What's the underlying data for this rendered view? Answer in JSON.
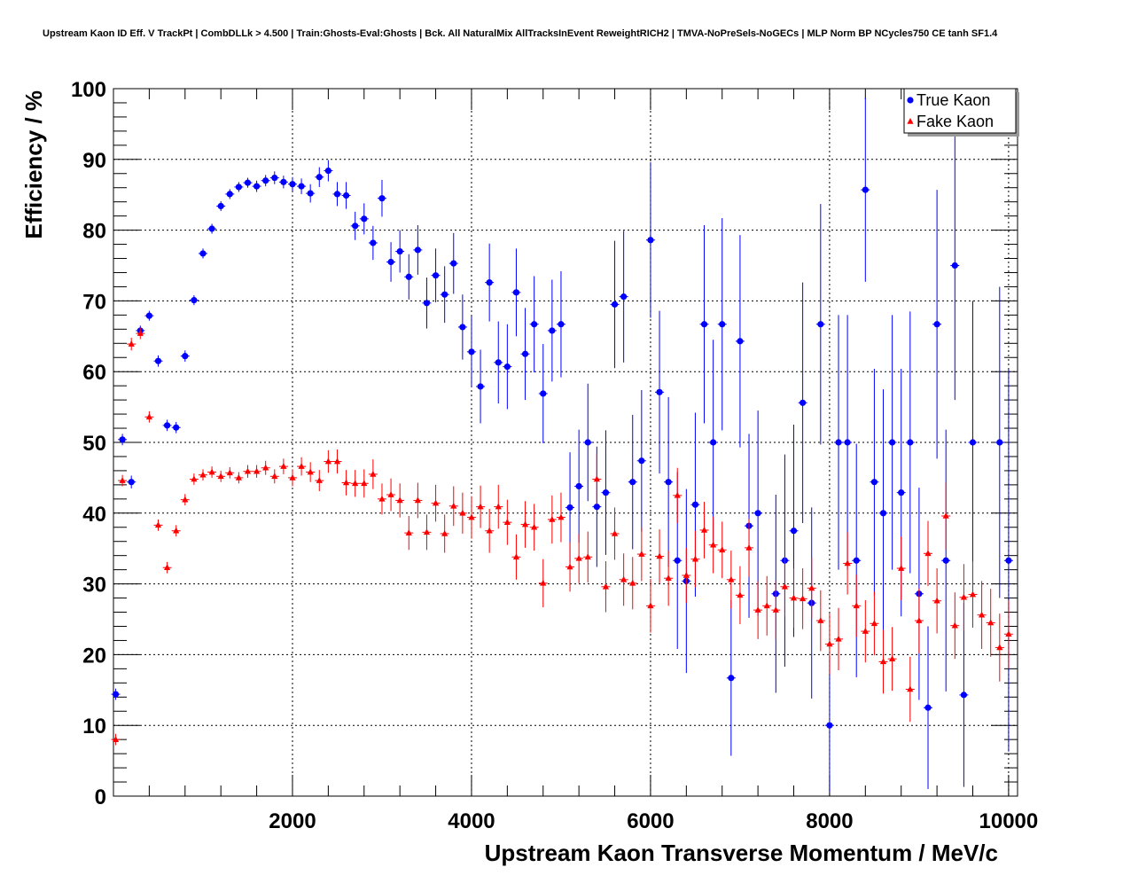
{
  "chart_data": {
    "type": "scatter",
    "title": "Upstream Kaon ID Eff. V TrackPt | CombDLLk > 4.500 | Train:Ghosts-Eval:Ghosts | Bck. All NaturalMix AllTracksInEvent ReweightRICH2 | TMVA-NoPreSels-NoGECs | MLP Norm BP NCycles750 CE tanh SF1.4",
    "xlabel": "Upstream Kaon Transverse Momentum / MeV/c",
    "ylabel": "Efficiency / %",
    "xlim": [
      0,
      10100
    ],
    "ylim": [
      0,
      100
    ],
    "xticks": [
      2000,
      4000,
      6000,
      8000,
      10000
    ],
    "yticks": [
      0,
      10,
      20,
      30,
      40,
      50,
      60,
      70,
      80,
      90,
      100
    ],
    "grid": true,
    "legend_position": "top-right",
    "series": [
      {
        "name": "True Kaon",
        "color": "#0000ff",
        "marker": "circle",
        "x": [
          25,
          100,
          200,
          300,
          400,
          500,
          600,
          700,
          800,
          900,
          1000,
          1100,
          1200,
          1300,
          1400,
          1500,
          1600,
          1700,
          1800,
          1900,
          2000,
          2100,
          2200,
          2300,
          2400,
          2500,
          2600,
          2700,
          2800,
          2900,
          3000,
          3100,
          3200,
          3300,
          3400,
          3500,
          3600,
          3700,
          3800,
          3900,
          4000,
          4100,
          4200,
          4300,
          4400,
          4500,
          4600,
          4700,
          4800,
          4900,
          5000,
          5100,
          5200,
          5300,
          5400,
          5500,
          5600,
          5700,
          5800,
          5900,
          6000,
          6100,
          6200,
          6300,
          6400,
          6500,
          6600,
          6700,
          6800,
          6900,
          7000,
          7100,
          7200,
          7400,
          7500,
          7600,
          7700,
          7800,
          7900,
          8000,
          8100,
          8200,
          8300,
          8400,
          8500,
          8600,
          8700,
          8800,
          8900,
          9000,
          9100,
          9200,
          9300,
          9400,
          9500,
          9600,
          9900,
          10000
        ],
        "y": [
          14.4,
          50.4,
          44.4,
          65.8,
          67.9,
          61.5,
          52.4,
          52.1,
          62.2,
          70.1,
          76.7,
          80.2,
          83.4,
          85.1,
          86.1,
          86.7,
          86.2,
          87.0,
          87.4,
          86.8,
          86.5,
          86.2,
          85.2,
          87.5,
          88.4,
          85.1,
          84.9,
          80.6,
          81.6,
          78.2,
          84.5,
          75.5,
          77.0,
          73.4,
          77.2,
          69.7,
          73.6,
          70.9,
          75.3,
          66.3,
          62.8,
          57.9,
          72.6,
          61.3,
          60.7,
          71.2,
          62.5,
          66.7,
          56.9,
          65.8,
          66.7,
          40.8,
          43.8,
          50.0,
          40.9,
          42.9,
          69.5,
          70.6,
          44.4,
          47.4,
          78.6,
          57.1,
          44.4,
          33.3,
          30.4,
          41.2,
          66.7,
          50.0,
          66.7,
          16.7,
          64.3,
          38.2,
          40.0,
          28.6,
          33.3,
          37.5,
          55.6,
          27.3,
          66.7,
          10.0,
          50.0,
          50.0,
          33.3,
          85.7,
          44.4,
          40.0,
          50.0,
          42.9,
          50.0,
          28.6,
          12.5,
          66.7,
          33.3,
          75.0,
          14.3,
          50.0,
          50.0,
          33.3
        ],
        "err": [
          0.8,
          0.8,
          0.9,
          0.7,
          0.7,
          0.8,
          0.8,
          0.8,
          0.8,
          0.7,
          0.7,
          0.7,
          0.7,
          0.7,
          0.7,
          0.7,
          0.8,
          0.8,
          0.9,
          0.9,
          1.0,
          1.1,
          1.3,
          1.4,
          1.5,
          1.7,
          1.9,
          2.0,
          2.2,
          2.4,
          2.6,
          2.8,
          3.0,
          3.2,
          3.5,
          3.6,
          3.8,
          4.0,
          4.3,
          4.6,
          5.0,
          5.2,
          5.5,
          5.8,
          6.0,
          6.2,
          6.5,
          6.8,
          7.0,
          7.2,
          7.5,
          7.8,
          8.0,
          8.3,
          8.5,
          8.8,
          9.0,
          9.3,
          9.5,
          10.0,
          11.0,
          11.5,
          12.0,
          12.5,
          13.0,
          13.0,
          14.0,
          14.5,
          15.0,
          11.0,
          15.0,
          13.0,
          14.5,
          14.0,
          15.0,
          15.0,
          17.0,
          13.5,
          17.0,
          9.5,
          18.0,
          18.0,
          16.5,
          13.0,
          16.0,
          17.5,
          18.0,
          17.5,
          18.5,
          15.0,
          11.5,
          19.0,
          18.5,
          19.0,
          13.0,
          20.0,
          22.0,
          27.0
        ]
      },
      {
        "name": "Fake Kaon",
        "color": "#ff0000",
        "marker": "triangle",
        "x": [
          25,
          100,
          200,
          300,
          400,
          500,
          600,
          700,
          800,
          900,
          1000,
          1100,
          1200,
          1300,
          1400,
          1500,
          1600,
          1700,
          1800,
          1900,
          2000,
          2100,
          2200,
          2300,
          2400,
          2500,
          2600,
          2700,
          2800,
          2900,
          3000,
          3100,
          3200,
          3300,
          3400,
          3500,
          3600,
          3700,
          3800,
          3900,
          4000,
          4100,
          4200,
          4300,
          4400,
          4500,
          4600,
          4700,
          4800,
          4900,
          5000,
          5100,
          5200,
          5300,
          5400,
          5500,
          5600,
          5700,
          5800,
          5900,
          6000,
          6100,
          6200,
          6300,
          6400,
          6500,
          6600,
          6700,
          6800,
          6900,
          7000,
          7100,
          7200,
          7300,
          7400,
          7500,
          7600,
          7700,
          7800,
          7900,
          8000,
          8100,
          8200,
          8300,
          8400,
          8500,
          8600,
          8700,
          8800,
          8900,
          9000,
          9100,
          9200,
          9300,
          9400,
          9500,
          9600,
          9700,
          9800,
          9900,
          10000
        ],
        "y": [
          8.0,
          44.6,
          63.9,
          65.4,
          53.6,
          38.3,
          32.3,
          37.5,
          41.9,
          44.8,
          45.4,
          45.8,
          45.2,
          45.7,
          45.0,
          45.9,
          45.9,
          46.4,
          45.2,
          46.6,
          45.0,
          46.6,
          45.8,
          44.6,
          47.3,
          47.3,
          44.3,
          44.2,
          44.2,
          45.5,
          42.0,
          42.6,
          41.8,
          37.2,
          41.8,
          37.3,
          41.4,
          37.1,
          41.0,
          40.0,
          39.4,
          40.9,
          37.5,
          40.9,
          38.7,
          33.8,
          38.4,
          38.0,
          30.1,
          39.1,
          39.4,
          32.4,
          33.6,
          33.8,
          44.8,
          29.6,
          37.1,
          30.6,
          30.1,
          34.2,
          26.9,
          33.9,
          30.8,
          42.5,
          31.2,
          33.5,
          37.6,
          35.5,
          34.8,
          30.6,
          28.4,
          35.1,
          26.3,
          26.9,
          26.3,
          29.6,
          28.0,
          27.9,
          29.4,
          24.8,
          21.5,
          22.2,
          32.9,
          26.9,
          23.3,
          24.4,
          19.0,
          19.4,
          32.2,
          15.1,
          24.8,
          34.3,
          27.6,
          39.6,
          24.1,
          28.1,
          28.5,
          25.6,
          24.5,
          21.0,
          22.9
        ],
        "err": [
          0.8,
          0.8,
          0.9,
          0.8,
          0.8,
          0.8,
          0.8,
          0.8,
          0.8,
          0.8,
          0.8,
          0.8,
          0.8,
          0.8,
          0.8,
          0.9,
          0.9,
          1.0,
          1.0,
          1.1,
          1.2,
          1.3,
          1.4,
          1.5,
          1.6,
          1.7,
          1.8,
          1.9,
          2.0,
          2.1,
          2.2,
          2.3,
          2.4,
          2.4,
          2.5,
          2.5,
          2.6,
          2.7,
          2.8,
          2.9,
          3.0,
          3.0,
          3.1,
          3.1,
          3.2,
          3.2,
          3.3,
          3.3,
          3.4,
          3.4,
          3.5,
          3.5,
          3.5,
          3.6,
          3.6,
          3.6,
          3.7,
          3.7,
          3.7,
          3.8,
          3.8,
          3.8,
          3.9,
          3.9,
          3.9,
          4.0,
          4.0,
          4.0,
          4.0,
          4.1,
          4.1,
          4.1,
          4.1,
          4.2,
          4.2,
          4.2,
          4.2,
          4.3,
          4.3,
          4.3,
          4.3,
          4.4,
          4.4,
          4.4,
          4.4,
          4.5,
          4.5,
          4.5,
          4.5,
          4.6,
          4.6,
          4.6,
          4.6,
          4.7,
          4.7,
          4.7,
          4.7,
          4.8,
          4.8,
          4.8,
          4.8
        ]
      }
    ]
  }
}
